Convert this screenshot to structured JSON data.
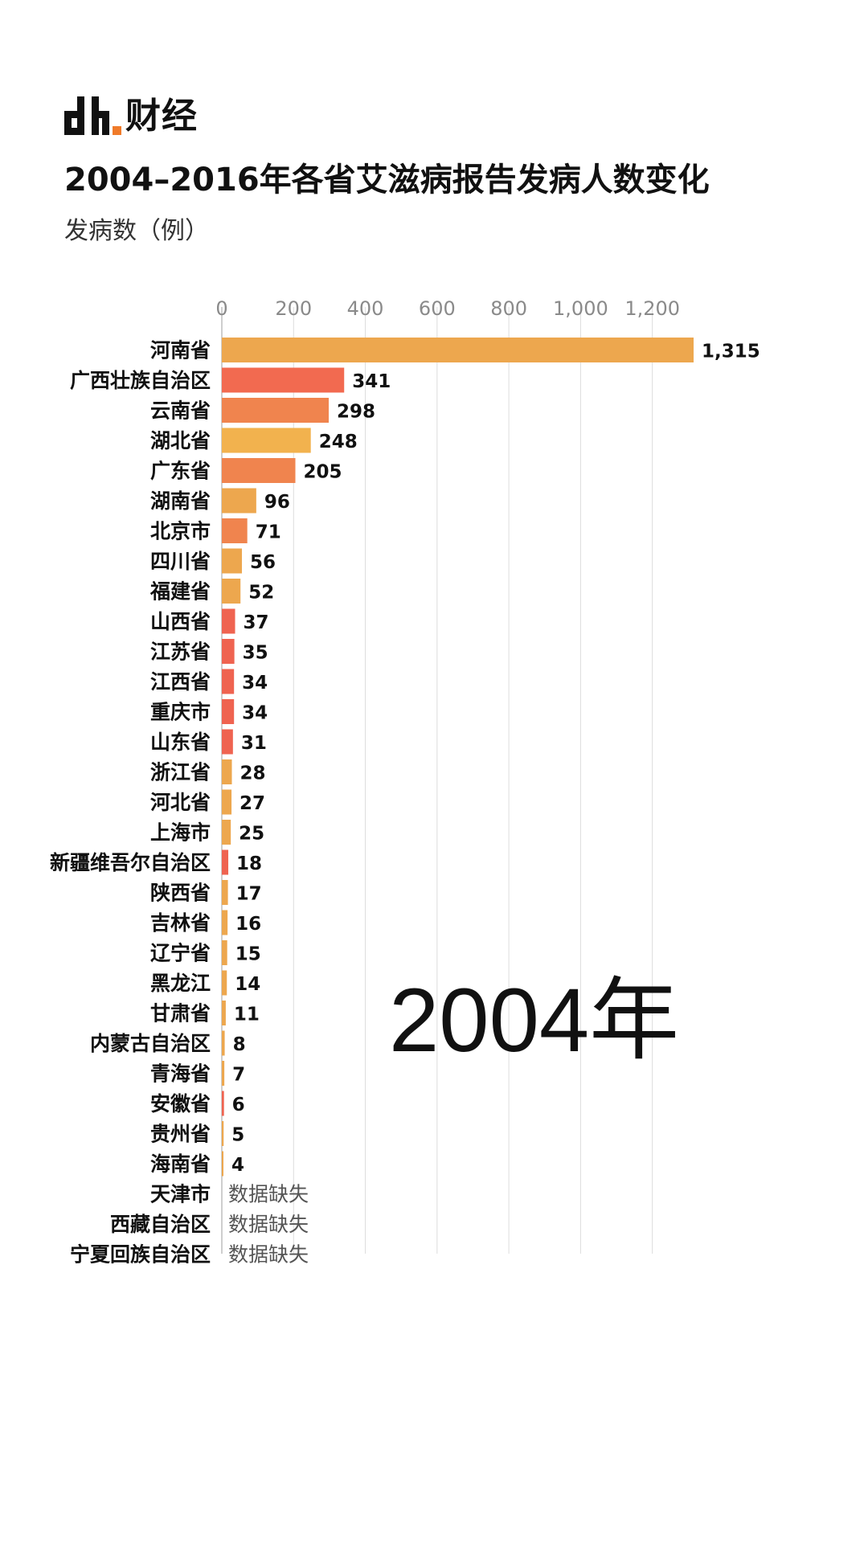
{
  "brand": {
    "logo_text": "财经"
  },
  "chart_data": {
    "type": "bar",
    "orientation": "horizontal",
    "title": "2004–2016年各省艾滋病报告发病人数变化",
    "subtitle": "发病数（例）",
    "year": "2004年",
    "xlim": [
      0,
      1320
    ],
    "x_ticks": [
      0,
      200,
      400,
      600,
      800,
      1000,
      1200
    ],
    "x_tick_labels": [
      "0",
      "200",
      "400",
      "600",
      "800",
      "1,000",
      "1,200"
    ],
    "grid": true,
    "missing_label": "数据缺失",
    "categories": [
      "河南省",
      "广西壮族自治区",
      "云南省",
      "湖北省",
      "广东省",
      "湖南省",
      "北京市",
      "四川省",
      "福建省",
      "山西省",
      "江苏省",
      "江西省",
      "重庆市",
      "山东省",
      "浙江省",
      "河北省",
      "上海市",
      "新疆维吾尔自治区",
      "陕西省",
      "吉林省",
      "辽宁省",
      "黑龙江",
      "甘肃省",
      "内蒙古自治区",
      "青海省",
      "安徽省",
      "贵州省",
      "海南省",
      "天津市",
      "西藏自治区",
      "宁夏回族自治区"
    ],
    "values": [
      1315,
      341,
      298,
      248,
      205,
      96,
      71,
      56,
      52,
      37,
      35,
      34,
      34,
      31,
      28,
      27,
      25,
      18,
      17,
      16,
      15,
      14,
      11,
      8,
      7,
      6,
      5,
      4,
      null,
      null,
      null
    ],
    "value_labels": [
      "1,315",
      "341",
      "298",
      "248",
      "205",
      "96",
      "71",
      "56",
      "52",
      "37",
      "35",
      "34",
      "34",
      "31",
      "28",
      "27",
      "25",
      "18",
      "17",
      "16",
      "15",
      "14",
      "11",
      "8",
      "7",
      "6",
      "5",
      "4",
      "",
      "",
      ""
    ],
    "colors": [
      "#EDA74E",
      "#F26A50",
      "#F0844E",
      "#F2B24E",
      "#F0844E",
      "#EDA74E",
      "#F0844E",
      "#EDA74E",
      "#EDA74E",
      "#EF6350",
      "#EF6350",
      "#EF6350",
      "#EF6350",
      "#EF6350",
      "#EDA74E",
      "#EDA74E",
      "#EDA74E",
      "#EF6350",
      "#EDA74E",
      "#EDA74E",
      "#EDA74E",
      "#EDA74E",
      "#EDA74E",
      "#EDA74E",
      "#EDA74E",
      "#EF6350",
      "#EDA74E",
      "#EDA74E",
      "",
      "",
      ""
    ]
  }
}
